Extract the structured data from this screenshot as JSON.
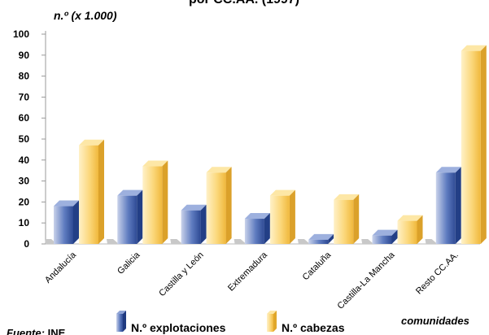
{
  "chart_data": {
    "type": "bar",
    "title": "por CC.AA. (1997)",
    "ylabel": "n.º (x 1.000)",
    "xlabel": "comunidades",
    "source_label": "Fuente:",
    "source_value": "INE",
    "ylim": [
      0,
      100
    ],
    "yticks": [
      0,
      10,
      20,
      30,
      40,
      50,
      60,
      70,
      80,
      90,
      100
    ],
    "categories": [
      "Andalucía",
      "Galicia",
      "Castilla y León",
      "Extremadura",
      "Cataluña",
      "Castilla-La Mancha",
      "Resto CC.AA."
    ],
    "series": [
      {
        "name": "N.º explotaciones",
        "values": [
          18,
          23,
          16,
          12,
          2,
          4,
          34
        ],
        "color": "#3f5fa8"
      },
      {
        "name": "N.º cabezas",
        "values": [
          47,
          37,
          34,
          23,
          21,
          11,
          92
        ],
        "color": "#f5c24c"
      }
    ],
    "grid": false,
    "legend_position": "bottom"
  }
}
